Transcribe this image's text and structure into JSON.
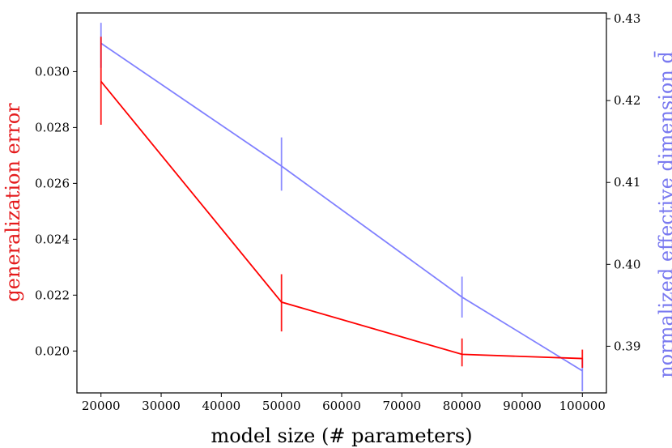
{
  "chart_data": {
    "type": "line",
    "x": [
      20000,
      50000,
      80000,
      100000
    ],
    "xlabel": "model size (# parameters)",
    "xticks": [
      20000,
      30000,
      40000,
      50000,
      60000,
      70000,
      80000,
      90000,
      100000
    ],
    "xlim": [
      16000,
      104000
    ],
    "y_left": {
      "label": "generalization error",
      "color": "#e41a1c",
      "lim": [
        0.0185,
        0.0321
      ],
      "ticks": [
        0.02,
        0.022,
        0.024,
        0.026,
        0.028,
        0.03
      ],
      "tick_labels": [
        "0.020",
        "0.022",
        "0.024",
        "0.026",
        "0.028",
        "0.030"
      ]
    },
    "y_right": {
      "label": "normalized effective dimension d̄",
      "color": "#7a7af0",
      "lim": [
        0.3843,
        0.4307
      ],
      "ticks": [
        0.39,
        0.4,
        0.41,
        0.42,
        0.43
      ],
      "tick_labels": [
        "0.39",
        "0.40",
        "0.41",
        "0.42",
        "0.43"
      ]
    },
    "series": [
      {
        "axis": "left",
        "color": "#ff0000",
        "values": [
          0.02965,
          0.02175,
          0.01988,
          0.01973
        ],
        "err_low": [
          0.0281,
          0.0207,
          0.01945,
          0.0194
        ],
        "err_high": [
          0.03125,
          0.02275,
          0.02045,
          0.02005
        ]
      },
      {
        "axis": "right",
        "color": "#8080ff",
        "values": [
          0.427,
          0.412,
          0.396,
          0.387
        ],
        "err_low": [
          0.424,
          0.409,
          0.3935,
          0.3845
        ],
        "err_high": [
          0.4295,
          0.4155,
          0.3985,
          0.3885
        ]
      }
    ]
  }
}
